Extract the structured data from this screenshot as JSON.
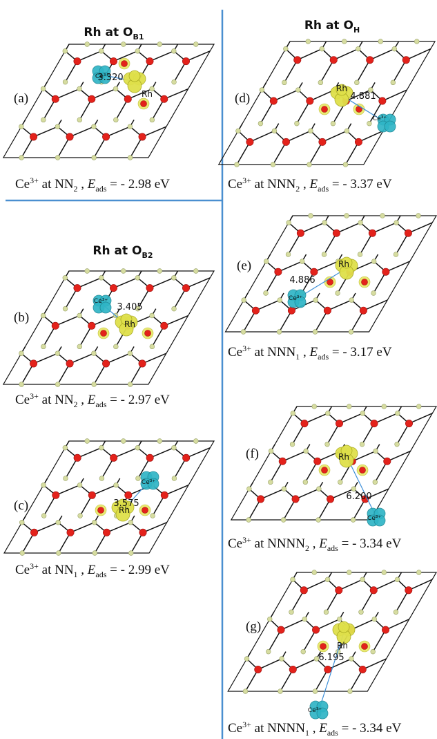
{
  "sections": {
    "ob1": {
      "title": "Rh at O",
      "sub": "B1"
    },
    "ob2": {
      "title": "Rh at O",
      "sub": "B2"
    },
    "oh": {
      "title": "Rh at O",
      "sub": "H"
    }
  },
  "panels": [
    {
      "id": "a",
      "label": "(a)",
      "distance": "3.320",
      "ce_label": "Ce³⁺",
      "rh_label": "Rh",
      "caption": {
        "ion": "Ce",
        "charge": "3+",
        "site": "NN",
        "site_sub": "2",
        "eads": "- 2.98 eV"
      }
    },
    {
      "id": "b",
      "label": "(b)",
      "distance": "3.405",
      "ce_label": "Ce³⁺",
      "rh_label": "Rh",
      "caption": {
        "ion": "Ce",
        "charge": "3+",
        "site": "NN",
        "site_sub": "2",
        "eads": "- 2.97 eV"
      }
    },
    {
      "id": "c",
      "label": "(c)",
      "distance": "3.575",
      "ce_label": "Ce³⁺",
      "rh_label": "Rh",
      "caption": {
        "ion": "Ce",
        "charge": "3+",
        "site": "NN",
        "site_sub": "1",
        "eads": "- 2.99 eV"
      }
    },
    {
      "id": "d",
      "label": "(d)",
      "distance": "4.881",
      "ce_label": "Ce³⁺",
      "rh_label": "Rh",
      "caption": {
        "ion": "Ce",
        "charge": "3+",
        "site": "NNN",
        "site_sub": "2",
        "eads": "- 3.37 eV"
      }
    },
    {
      "id": "e",
      "label": "(e)",
      "distance": "4.886",
      "ce_label": "Ce³⁺",
      "rh_label": "Rh",
      "caption": {
        "ion": "Ce",
        "charge": "3+",
        "site": "NNN",
        "site_sub": "1",
        "eads": "- 3.17 eV"
      }
    },
    {
      "id": "f",
      "label": "(f)",
      "distance": "6.200",
      "ce_label": "Ce³⁺",
      "rh_label": "Rh",
      "caption": {
        "ion": "Ce",
        "charge": "3+",
        "site": "NNNN",
        "site_sub": "2",
        "eads": "- 3.34 eV"
      }
    },
    {
      "id": "g",
      "label": "(g)",
      "distance": "6.195",
      "ce_label": "Ce³⁺",
      "rh_label": "Rh",
      "caption": {
        "ion": "Ce",
        "charge": "3+",
        "site": "NNNN",
        "site_sub": "1",
        "eads": "- 3.34 eV"
      }
    }
  ],
  "caption_eads_symbol": "E",
  "caption_eads_sub": "ads",
  "caption_eq": "=",
  "caption_at": "at",
  "colors": {
    "oxygen": "#e3221b",
    "cerium": "#d6dca0",
    "rh_density": "#dfe04a",
    "ce3_density": "#2fb5c6",
    "divider": "#4a8fd0"
  }
}
